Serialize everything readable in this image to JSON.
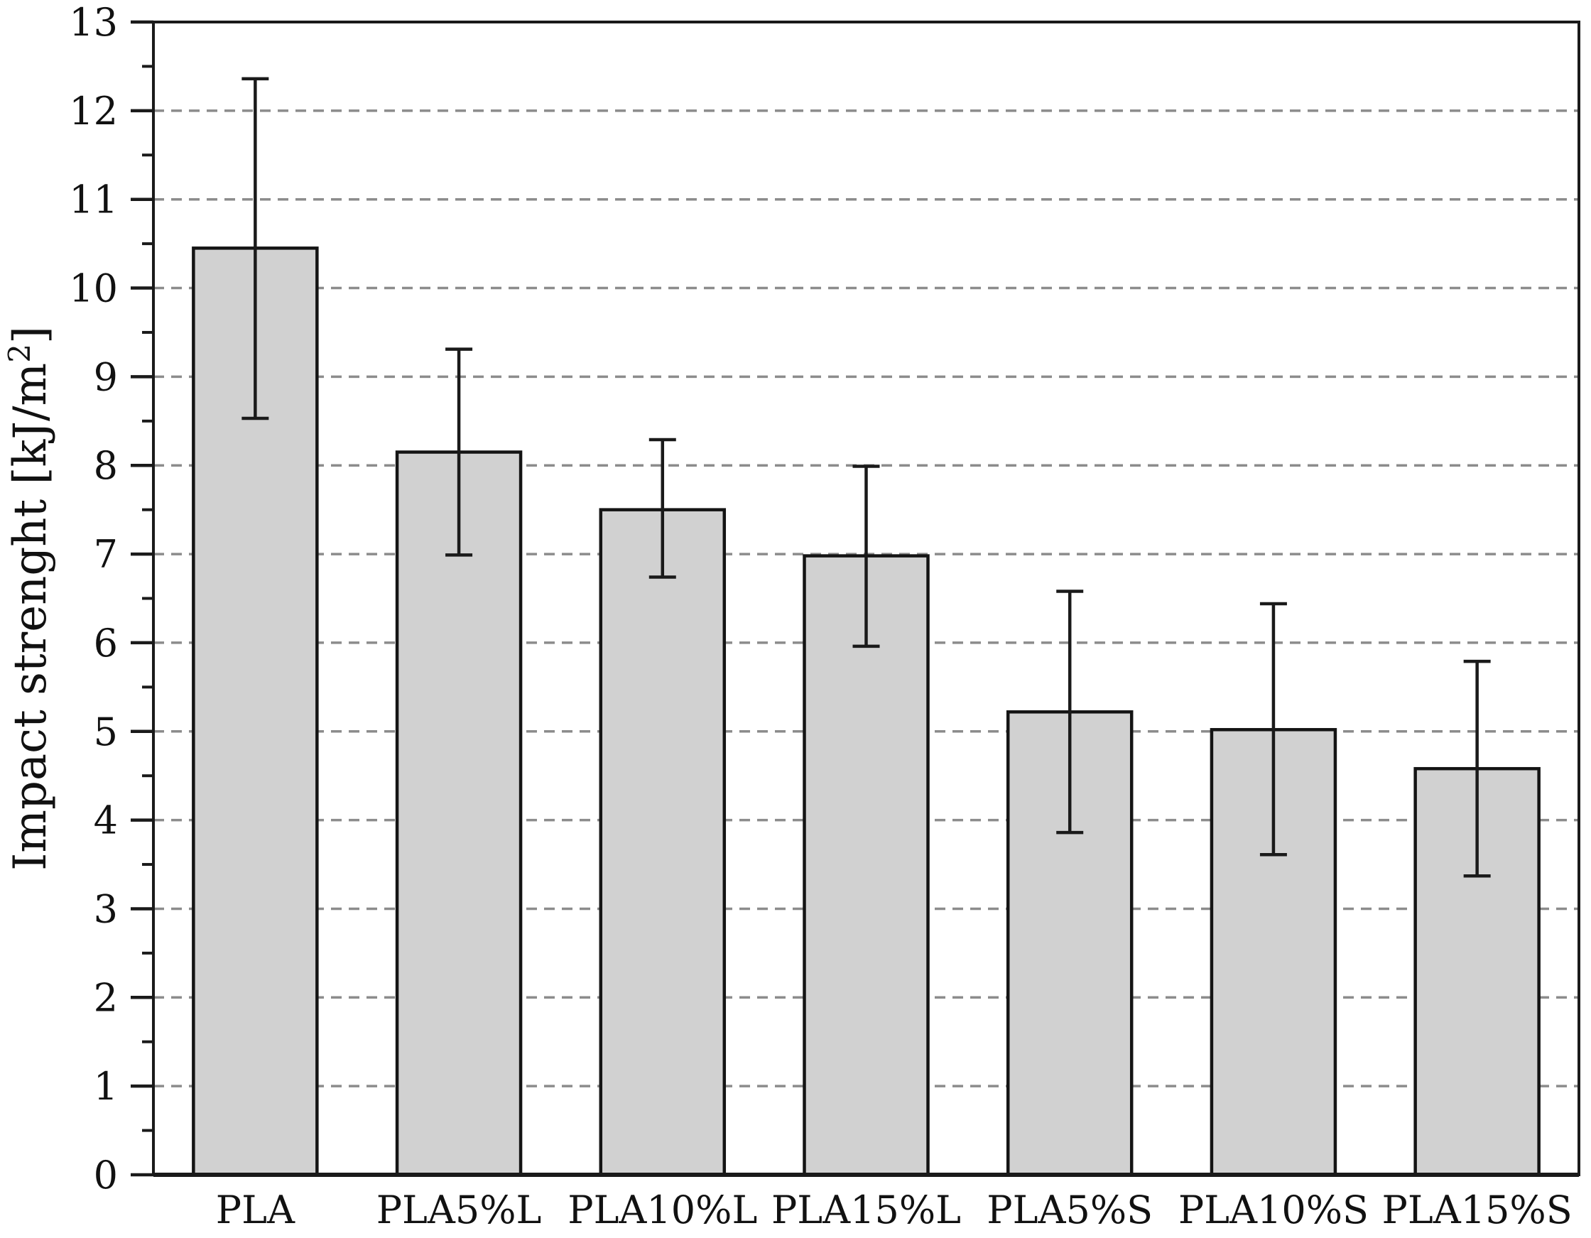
{
  "chart_data": {
    "type": "bar",
    "title": "",
    "xlabel": "",
    "ylabel": "Impact strenght [kJ/m²]",
    "ylabel_parts": {
      "main": "Impact strenght [kJ/m",
      "sup": "2",
      "close": "]"
    },
    "categories": [
      "PLA",
      "PLA5%L",
      "PLA10%L",
      "PLA15%L",
      "PLA5%S",
      "PLA10%S",
      "PLA15%S"
    ],
    "values": [
      10.45,
      8.15,
      7.5,
      6.98,
      5.22,
      5.02,
      4.58
    ],
    "error_low": [
      8.53,
      6.99,
      6.74,
      5.96,
      3.86,
      3.61,
      3.37
    ],
    "error_high": [
      12.36,
      9.31,
      8.29,
      7.99,
      6.58,
      6.44,
      5.79
    ],
    "ylim": [
      0,
      13
    ],
    "ytick_step": 1,
    "ytick_labels": [
      "0",
      "1",
      "2",
      "3",
      "4",
      "5",
      "6",
      "7",
      "8",
      "9",
      "10",
      "11",
      "12",
      "13"
    ],
    "minor_tick_step": 0.5,
    "grid": "horizontal dashed lines at integer ticks 1-12",
    "legend": "none",
    "colors": {
      "bar_fill": "#d1d1d1",
      "bar_border": "#141414",
      "error_bar": "#1a1a1a",
      "grid": "#8c8c8c",
      "axis": "#1a1a1a",
      "background": "#ffffff",
      "text": "#111111"
    }
  }
}
